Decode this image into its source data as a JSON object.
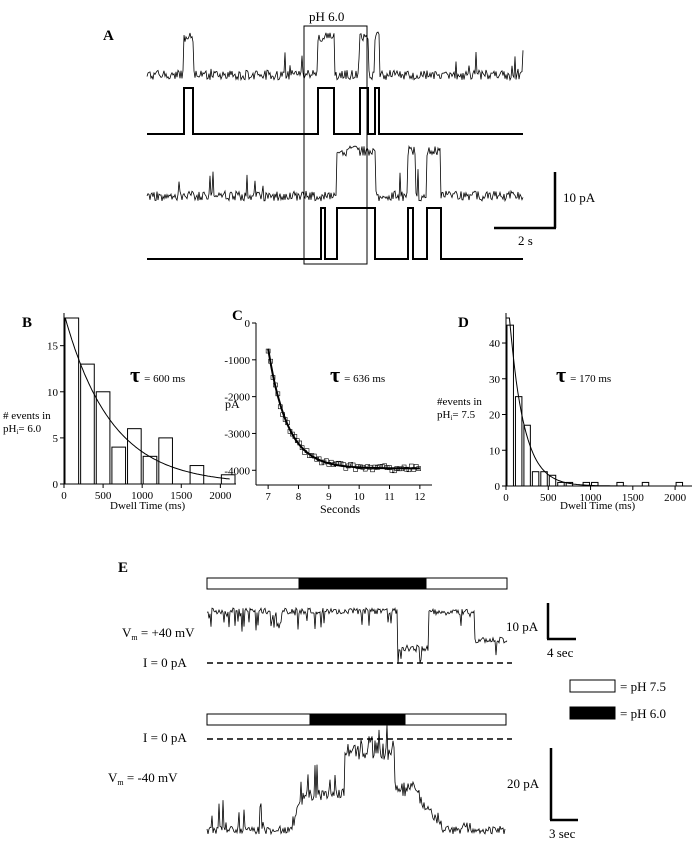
{
  "panel_a": {
    "label": "A",
    "window_label": "pH 6.0",
    "scale_current": "10 pA",
    "scale_time": "2 s"
  },
  "panel_b": {
    "label": "B",
    "tau_symbol": "τ",
    "tau_value": "= 600 ms",
    "ylabel_lines": [
      "# events in",
      "pH",
      "= 6.0"
    ],
    "ylabel_sub": "i",
    "xlabel": "Dwell Time (ms)"
  },
  "panel_c": {
    "label": "C",
    "tau_symbol": "τ",
    "tau_value": "= 636 ms",
    "ylabel": "pA",
    "xlabel": "Seconds"
  },
  "panel_d": {
    "label": "D",
    "tau_symbol": "τ",
    "tau_value": "= 170 ms",
    "ylabel_lines": [
      "#events in",
      "pH",
      "= 7.5"
    ],
    "ylabel_sub": "i",
    "xlabel": "Dwell Time (ms)"
  },
  "panel_e": {
    "label": "E",
    "vm_pos": "V",
    "vm_pos_sub": "m",
    "vm_pos_value": " = +40 mV",
    "vm_neg": "V",
    "vm_neg_sub": "m",
    "vm_neg_value": " = -40 mV",
    "zero_label_1": "I = 0 pA",
    "zero_label_2": "I = 0 pA",
    "scale1_current": "10 pA",
    "scale1_time": "4 sec",
    "scale2_current": "20 pA",
    "scale2_time": "3 sec",
    "legend": [
      {
        "label": "= pH 7.5",
        "color": "#ffffff"
      },
      {
        "label": "= pH 6.0",
        "color": "#000000"
      }
    ]
  },
  "chart_data": [
    {
      "id": "B",
      "type": "bar",
      "bar_centers": [
        100,
        300,
        500,
        700,
        900,
        1100,
        1300,
        1500,
        1700,
        1900,
        2100
      ],
      "values": [
        18,
        13,
        10,
        4,
        6,
        3,
        5,
        0,
        2,
        0,
        1
      ],
      "fit": {
        "type": "exponential",
        "tau_ms": 600,
        "amplitude": 18.5
      },
      "xlim": [
        0,
        2200
      ],
      "ylim": [
        0,
        18
      ],
      "xticks": [
        0,
        500,
        1000,
        1500,
        2000
      ],
      "yticks": [
        0,
        5,
        10,
        15
      ]
    },
    {
      "id": "C",
      "type": "scatter",
      "x_start": 7.0,
      "x_end": 12.0,
      "y_start": -700,
      "y_plateau": -3950,
      "fit": {
        "type": "exponential",
        "tau_ms": 636
      },
      "xlim": [
        6.6,
        12.4
      ],
      "ylim": [
        -4400,
        0
      ],
      "xticks": [
        7,
        8,
        9,
        10,
        11,
        12
      ],
      "yticks": [
        0,
        -1000,
        -2000,
        -3000,
        -4000
      ]
    },
    {
      "id": "D",
      "type": "bar",
      "bar_centers": [
        50,
        150,
        250,
        350,
        450,
        550,
        650,
        750,
        850,
        950,
        1050,
        1350,
        1650,
        2050
      ],
      "values": [
        45,
        25,
        17,
        4,
        4,
        3,
        1,
        1,
        0,
        1,
        1,
        1,
        1,
        1
      ],
      "fit": {
        "type": "exponential",
        "tau_ms": 170,
        "amplitude": 60
      },
      "xlim": [
        0,
        2200
      ],
      "ylim": [
        0,
        47
      ],
      "xticks": [
        0,
        500,
        1000,
        1500,
        2000
      ],
      "yticks": [
        0,
        10,
        20,
        30,
        40
      ]
    }
  ]
}
